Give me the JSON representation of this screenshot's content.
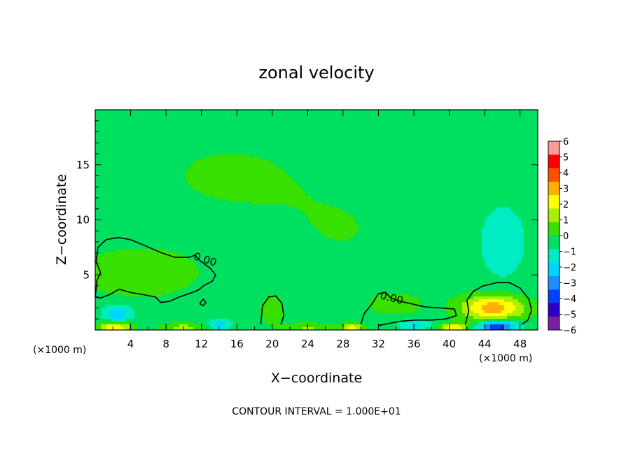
{
  "chart_data": {
    "type": "heatmap",
    "title": "zonal velocity",
    "xlabel": "X−coordinate",
    "ylabel": "Z−coordinate",
    "x_unit_left": "(×1000 m)",
    "x_unit_right": "(×1000 m)",
    "footer": "CONTOUR INTERVAL = 1.000E+01",
    "xlim": [
      0,
      50
    ],
    "ylim": [
      0,
      20
    ],
    "x_ticks": [
      4,
      8,
      12,
      16,
      20,
      24,
      28,
      32,
      36,
      40,
      44,
      48
    ],
    "y_ticks": [
      5,
      10,
      15
    ],
    "contour_level_label": "0.00",
    "colorbar": {
      "levels": [
        -6,
        -5,
        -4,
        -3,
        -2,
        -1,
        0,
        1,
        2,
        3,
        4,
        5,
        6
      ],
      "labels": [
        "6",
        "5",
        "4",
        "3",
        "2",
        "1",
        "0",
        "−1",
        "−2",
        "−3",
        "−4",
        "−5",
        "−6"
      ],
      "colors": [
        "#7a1fa2",
        "#2a00c8",
        "#0040ff",
        "#1e90ff",
        "#00d5ff",
        "#00ecc2",
        "#00e060",
        "#38e000",
        "#a8f000",
        "#ffff00",
        "#ffb000",
        "#ff5000",
        "#ff0000",
        "#ff9a9a"
      ]
    },
    "background_field_value": -0.4,
    "field_blobs": [
      {
        "x": 5,
        "z": 5.2,
        "rx": 6.5,
        "rz": 2.2,
        "v": 1.1
      },
      {
        "x": 15,
        "z": 14,
        "rx": 10,
        "rz": 4,
        "v": 0.5
      },
      {
        "x": 28,
        "z": 9,
        "rx": 9,
        "rz": 5,
        "v": 0.4
      },
      {
        "x": 20,
        "z": 1.8,
        "rx": 1.4,
        "rz": 1.4,
        "v": 0.9
      },
      {
        "x": 34,
        "z": 2.3,
        "rx": 3.5,
        "rz": 1.2,
        "v": 0.7
      },
      {
        "x": 46,
        "z": 8,
        "rx": 4,
        "rz": 5,
        "v": -0.9
      },
      {
        "x": 45,
        "z": 2,
        "rx": 3.5,
        "rz": 1.2,
        "v": 4.2
      },
      {
        "x": 45.5,
        "z": 0.3,
        "rx": 2.2,
        "rz": 0.6,
        "v": -4.8
      },
      {
        "x": 2.5,
        "z": 1.5,
        "rx": 1.8,
        "rz": 0.8,
        "v": -2.3
      },
      {
        "x": 2.2,
        "z": 0.2,
        "rx": 1.8,
        "rz": 0.5,
        "v": 3.6
      },
      {
        "x": 40.5,
        "z": 0.2,
        "rx": 1.4,
        "rz": 0.4,
        "v": 3.5
      },
      {
        "x": 29,
        "z": 0.2,
        "rx": 1.2,
        "rz": 0.4,
        "v": 3
      },
      {
        "x": 10,
        "z": 0.2,
        "rx": 2.5,
        "rz": 0.4,
        "v": 1.8
      },
      {
        "x": 24,
        "z": 0.2,
        "rx": 2.5,
        "rz": 0.4,
        "v": 1.5
      },
      {
        "x": 14,
        "z": 0.5,
        "rx": 1.5,
        "rz": 0.5,
        "v": -2
      },
      {
        "x": 36,
        "z": 0.5,
        "rx": 2,
        "rz": 0.5,
        "v": -1.8
      }
    ],
    "zero_contours": [
      [
        [
          0,
          3.0
        ],
        [
          0.2,
          4.5
        ],
        [
          0.6,
          5.2
        ],
        [
          0.1,
          6.2
        ],
        [
          0.3,
          7.5
        ],
        [
          1.2,
          8.2
        ],
        [
          2.6,
          8.4
        ],
        [
          4.0,
          8.2
        ],
        [
          5.8,
          7.6
        ],
        [
          7.5,
          7.0
        ],
        [
          9.0,
          6.6
        ],
        [
          10.6,
          6.6
        ],
        [
          11.3,
          6.8
        ],
        [
          11.8,
          6.3
        ],
        [
          13.0,
          5.6
        ],
        [
          13.6,
          5.0
        ],
        [
          13.2,
          4.4
        ],
        [
          12.4,
          4.1
        ],
        [
          11.6,
          3.6
        ],
        [
          10.6,
          3.3
        ],
        [
          9.5,
          3.0
        ],
        [
          8.4,
          2.6
        ],
        [
          7.4,
          2.5
        ],
        [
          6.8,
          3.0
        ],
        [
          5.5,
          3.2
        ],
        [
          4.0,
          3.4
        ],
        [
          2.7,
          3.7
        ],
        [
          1.6,
          3.2
        ],
        [
          0.6,
          2.9
        ],
        [
          0,
          3.0
        ]
      ],
      [
        [
          18.7,
          0.5
        ],
        [
          18.9,
          2.2
        ],
        [
          19.6,
          3.0
        ],
        [
          20.4,
          3.1
        ],
        [
          21.1,
          2.4
        ],
        [
          21.3,
          1.3
        ],
        [
          21.0,
          0.5
        ]
      ],
      [
        [
          30.0,
          0.5
        ],
        [
          30.4,
          1.5
        ],
        [
          31.3,
          2.4
        ],
        [
          32.0,
          3.3
        ],
        [
          32.8,
          3.4
        ],
        [
          33.4,
          2.9
        ],
        [
          34.5,
          2.6
        ],
        [
          35.6,
          2.4
        ],
        [
          37.2,
          2.1
        ],
        [
          39.0,
          2.0
        ],
        [
          40.6,
          1.9
        ],
        [
          40.8,
          1.3
        ],
        [
          39.6,
          1.0
        ],
        [
          38.0,
          0.9
        ],
        [
          36.2,
          0.9
        ],
        [
          34.6,
          0.8
        ],
        [
          33.2,
          0.6
        ],
        [
          32.0,
          0.4
        ]
      ],
      [
        [
          41.8,
          0.5
        ],
        [
          42.2,
          1.7
        ],
        [
          42.0,
          2.7
        ],
        [
          42.7,
          3.5
        ],
        [
          43.8,
          4.0
        ],
        [
          45.4,
          4.3
        ],
        [
          46.8,
          4.3
        ],
        [
          48.0,
          3.8
        ],
        [
          49.0,
          2.8
        ],
        [
          49.3,
          1.8
        ],
        [
          48.9,
          0.9
        ],
        [
          48.2,
          0.5
        ]
      ],
      [
        [
          11.8,
          2.4
        ],
        [
          12.2,
          2.8
        ],
        [
          12.5,
          2.5
        ],
        [
          12.2,
          2.2
        ],
        [
          11.8,
          2.4
        ]
      ]
    ],
    "contour_labels": [
      {
        "x": 12.3,
        "z": 6.1,
        "rot": 18
      },
      {
        "x": 33.4,
        "z": 2.6,
        "rot": 14
      }
    ]
  }
}
